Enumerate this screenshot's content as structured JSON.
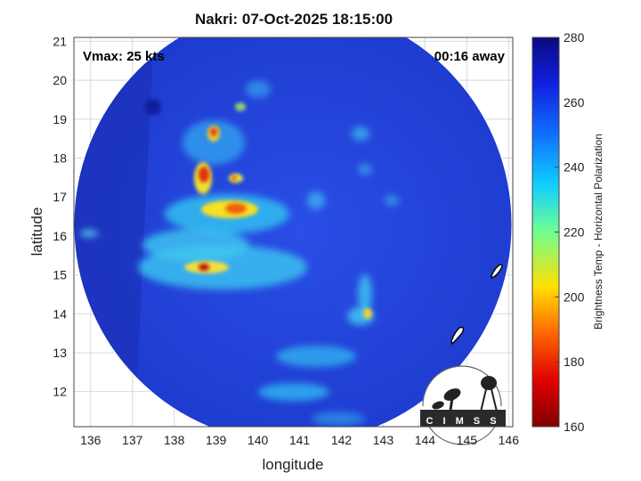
{
  "title": "Nakri: 07-Oct-2025 18:15:00",
  "vmax_label": "Vmax: 25 kts",
  "away_label": "00:16 away",
  "xlabel": "longitude",
  "ylabel": "latitude",
  "x_ticks": [
    "136",
    "137",
    "138",
    "139",
    "140",
    "141",
    "142",
    "143",
    "144",
    "145",
    "146"
  ],
  "y_ticks": [
    "12",
    "13",
    "14",
    "15",
    "16",
    "17",
    "18",
    "19",
    "20",
    "21"
  ],
  "xlim": [
    135.6,
    146.1
  ],
  "ylim": [
    11.1,
    21.1
  ],
  "colorbar": {
    "label": "Brightness Temp - Horizontal Polarization",
    "ticks": [
      "160",
      "180",
      "200",
      "220",
      "240",
      "260",
      "280"
    ],
    "range": [
      160,
      280
    ]
  },
  "logo_text": "CIMSS",
  "colors": {
    "background_field": "#1f3fd8",
    "deep_blue": "#1020a0",
    "cyan": "#30c0f0",
    "yellow": "#f8e020",
    "red": "#e02010"
  }
}
